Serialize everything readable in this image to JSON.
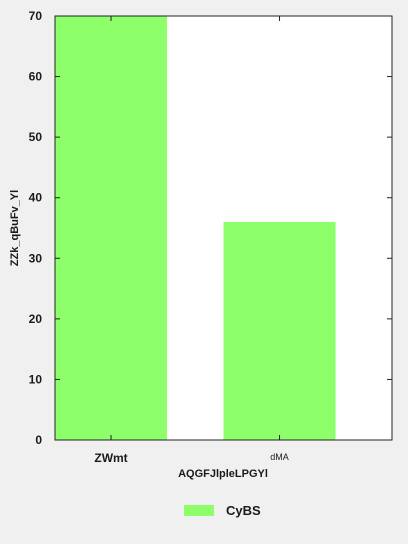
{
  "chart_data": {
    "type": "bar",
    "categories": [
      "ZWmt",
      "dMA"
    ],
    "series": [
      {
        "name": "CyBS",
        "values": [
          70,
          36
        ],
        "color": "#8cff6b"
      }
    ],
    "xlabel": "AQGFJlpleLPGYl",
    "ylabel": "ZZk_qBuFv_Yl",
    "ylim": [
      0,
      70
    ],
    "yticks": [
      0,
      10,
      20,
      30,
      40,
      50,
      60,
      70
    ],
    "grid": false,
    "legend_position": "bottom-center",
    "background": "#ffffff",
    "page_background": "#f0f0f0"
  }
}
